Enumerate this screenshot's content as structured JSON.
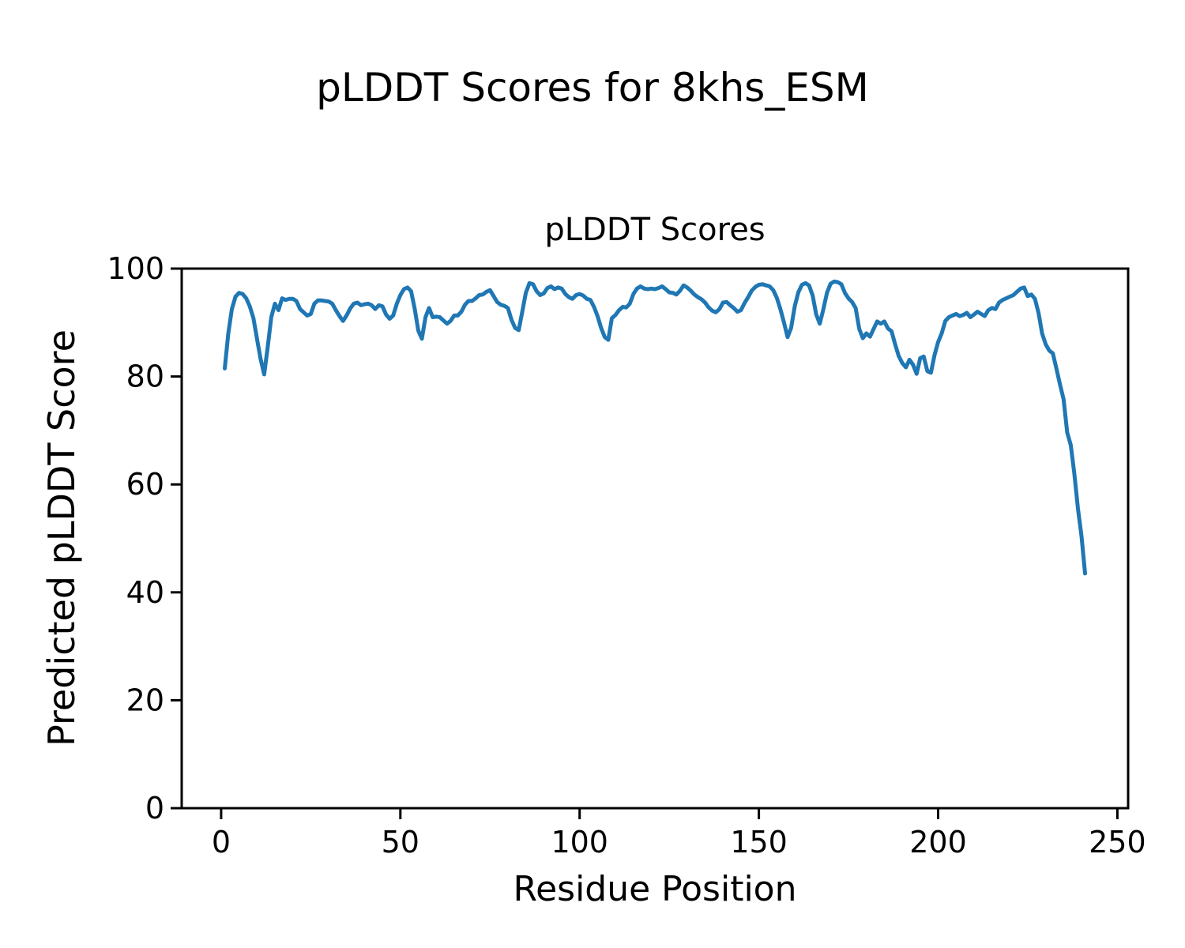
{
  "figure_title": "pLDDT Scores for 8khs_ESM",
  "chart_data": {
    "type": "line",
    "title": "pLDDT Scores",
    "xlabel": "Residue Position",
    "ylabel": "Predicted pLDDT Score",
    "xlim": [
      -11,
      253
    ],
    "ylim": [
      0,
      100
    ],
    "x_ticks": [
      0,
      50,
      100,
      150,
      200,
      250
    ],
    "y_ticks": [
      0,
      20,
      40,
      60,
      80,
      100
    ],
    "grid": false,
    "legend": "none",
    "line_color": "#1f77b4",
    "line_width": 5,
    "spine_color": "#000000",
    "series": [
      {
        "name": "pLDDT",
        "x_start": 1,
        "x_step": 1,
        "y": [
          81.5,
          88.0,
          92.5,
          94.8,
          95.5,
          95.3,
          94.5,
          93.0,
          90.8,
          87.0,
          83.3,
          80.4,
          85.5,
          91.0,
          93.5,
          92.3,
          94.5,
          94.2,
          94.4,
          94.4,
          94.0,
          92.5,
          91.9,
          91.3,
          91.6,
          93.5,
          94.1,
          94.1,
          94.0,
          93.9,
          93.5,
          92.3,
          91.2,
          90.3,
          91.3,
          92.6,
          93.5,
          93.7,
          93.2,
          93.4,
          93.5,
          93.2,
          92.5,
          93.2,
          93.0,
          91.5,
          90.7,
          91.3,
          93.5,
          95.1,
          96.2,
          96.5,
          95.8,
          92.5,
          88.5,
          87.0,
          91.0,
          92.7,
          91.0,
          91.1,
          91.0,
          90.4,
          89.8,
          90.3,
          91.3,
          91.3,
          92.0,
          93.3,
          94.0,
          94.0,
          94.5,
          95.1,
          95.2,
          95.7,
          96.0,
          94.9,
          93.8,
          93.3,
          93.1,
          92.7,
          90.5,
          89.0,
          88.6,
          92.0,
          95.5,
          97.3,
          97.1,
          95.8,
          95.1,
          95.4,
          96.4,
          96.7,
          96.2,
          96.5,
          96.3,
          95.3,
          94.7,
          94.4,
          95.1,
          95.3,
          95.0,
          94.4,
          94.2,
          92.9,
          91.2,
          89.0,
          87.3,
          86.8,
          90.8,
          91.4,
          92.3,
          92.9,
          92.8,
          93.5,
          95.3,
          96.3,
          96.7,
          96.3,
          96.2,
          96.3,
          96.2,
          96.4,
          96.7,
          96.2,
          95.6,
          95.5,
          95.2,
          95.9,
          96.9,
          96.5,
          95.9,
          95.2,
          94.7,
          94.3,
          93.7,
          92.8,
          92.2,
          91.9,
          92.5,
          93.7,
          93.8,
          93.2,
          92.7,
          92.0,
          92.3,
          93.6,
          94.7,
          95.9,
          96.6,
          97.0,
          97.1,
          96.9,
          96.7,
          96.0,
          94.6,
          92.5,
          90.0,
          87.3,
          89.0,
          93.0,
          95.6,
          97.0,
          97.3,
          96.9,
          95.0,
          91.5,
          89.8,
          92.5,
          95.5,
          97.2,
          97.6,
          97.5,
          97.1,
          95.5,
          94.5,
          93.8,
          92.7,
          88.8,
          87.1,
          88.0,
          87.4,
          88.8,
          90.2,
          89.8,
          90.2,
          88.9,
          88.4,
          86.0,
          83.8,
          82.5,
          81.7,
          83.1,
          82.2,
          80.5,
          83.4,
          83.7,
          81.0,
          80.7,
          84.0,
          86.4,
          88.0,
          90.3,
          91.0,
          91.3,
          91.6,
          91.2,
          91.4,
          91.8,
          91.0,
          91.5,
          92.0,
          91.6,
          91.2,
          92.3,
          92.7,
          92.5,
          93.7,
          94.2,
          94.5,
          94.8,
          95.1,
          95.7,
          96.3,
          96.5,
          94.9,
          95.2,
          94.4,
          91.8,
          88.0,
          86.0,
          84.8,
          84.3,
          81.5,
          78.5,
          75.8,
          69.6,
          67.3,
          62.0,
          55.5,
          50.4,
          43.5
        ]
      }
    ]
  }
}
